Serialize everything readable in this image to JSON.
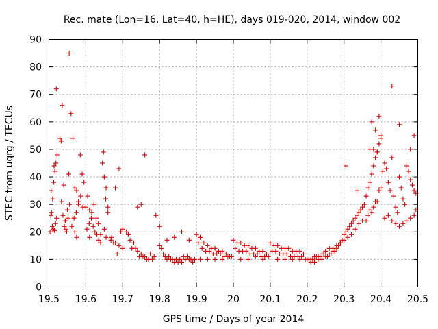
{
  "chart_data": {
    "type": "scatter",
    "title": "Rec. mate (Lon=16, Lat=40, h=HE), days 019-020, 2014, window 002",
    "xlabel": "GPS time / Days of year 2014",
    "ylabel": "STEC from uqrg / TECUs",
    "xlim": [
      19.5,
      20.5
    ],
    "ylim": [
      0,
      90
    ],
    "xticks": [
      "19.5",
      "19.6",
      "19.7",
      "19.8",
      "19.9",
      "20",
      "20.1",
      "20.2",
      "20.3",
      "20.4",
      "20.5"
    ],
    "yticks": [
      "0",
      "10",
      "20",
      "30",
      "40",
      "50",
      "60",
      "70",
      "80",
      "90"
    ],
    "grid": true,
    "marker": "plus",
    "color": "#d00000",
    "series": [
      {
        "x": [
          19.503,
          19.507,
          19.51,
          19.513,
          19.516,
          19.519,
          19.522,
          19.505,
          19.509,
          19.512,
          19.515,
          19.518,
          19.521,
          19.506,
          19.514,
          19.52,
          19.53,
          19.533,
          19.536,
          19.54,
          19.544,
          19.548,
          19.552,
          19.556,
          19.534,
          19.538,
          19.542,
          19.546,
          19.55,
          19.554,
          19.545,
          19.555,
          19.56,
          19.565,
          19.57,
          19.575,
          19.58,
          19.585,
          19.59,
          19.595,
          19.562,
          19.568,
          19.574,
          19.58,
          19.586,
          19.592,
          19.57,
          19.575,
          19.6,
          19.605,
          19.61,
          19.615,
          19.62,
          19.625,
          19.63,
          19.635,
          19.64,
          19.603,
          19.609,
          19.616,
          19.622,
          19.628,
          19.634,
          19.64,
          19.61,
          19.645,
          19.65,
          19.655,
          19.66,
          19.648,
          19.654,
          19.66,
          19.65,
          19.655,
          19.668,
          19.675,
          19.68,
          19.69,
          19.695,
          19.7,
          19.67,
          19.68,
          19.69,
          19.7,
          19.685,
          19.71,
          19.72,
          19.73,
          19.74,
          19.75,
          19.76,
          19.77,
          19.78,
          19.715,
          19.725,
          19.735,
          19.745,
          19.755,
          19.765,
          19.775,
          19.785,
          19.74,
          19.75,
          19.76,
          19.79,
          19.8,
          19.8,
          19.81,
          19.82,
          19.83,
          19.84,
          19.85,
          19.86,
          19.87,
          19.88,
          19.89,
          19.805,
          19.815,
          19.825,
          19.835,
          19.845,
          19.855,
          19.865,
          19.875,
          19.885,
          19.895,
          19.82,
          19.84,
          19.86,
          19.88,
          19.9,
          19.91,
          19.92,
          19.93,
          19.94,
          19.95,
          19.96,
          19.97,
          19.98,
          19.99,
          19.905,
          19.915,
          19.925,
          19.935,
          19.945,
          19.955,
          19.965,
          19.975,
          19.985,
          19.995,
          19.91,
          19.93,
          19.95,
          19.97,
          20.0,
          20.01,
          20.02,
          20.03,
          20.04,
          20.05,
          20.06,
          20.07,
          20.08,
          20.09,
          20.005,
          20.015,
          20.025,
          20.035,
          20.045,
          20.055,
          20.065,
          20.075,
          20.085,
          20.095,
          20.02,
          20.04,
          20.06,
          20.08,
          20.1,
          20.11,
          20.12,
          20.13,
          20.14,
          20.15,
          20.16,
          20.17,
          20.18,
          20.19,
          20.105,
          20.115,
          20.125,
          20.135,
          20.145,
          20.155,
          20.165,
          20.175,
          20.185,
          20.195,
          20.12,
          20.14,
          20.16,
          20.18,
          20.2,
          20.205,
          20.21,
          20.215,
          20.22,
          20.225,
          20.23,
          20.235,
          20.24,
          20.245,
          20.25,
          20.21,
          20.22,
          20.23,
          20.24,
          20.25,
          20.255,
          20.26,
          20.265,
          20.27,
          20.275,
          20.28,
          20.285,
          20.29,
          20.295,
          20.26,
          20.27,
          20.28,
          20.29,
          20.3,
          20.3,
          20.305,
          20.31,
          20.315,
          20.32,
          20.325,
          20.33,
          20.335,
          20.34,
          20.345,
          20.35,
          20.31,
          20.32,
          20.33,
          20.34,
          20.35,
          20.305,
          20.335,
          20.355,
          20.36,
          20.365,
          20.37,
          20.375,
          20.38,
          20.385,
          20.39,
          20.395,
          20.4,
          20.36,
          20.365,
          20.37,
          20.375,
          20.38,
          20.385,
          20.39,
          20.395,
          20.4,
          20.37,
          20.38,
          20.39,
          20.4,
          20.375,
          20.385,
          20.395,
          20.405,
          20.41,
          20.415,
          20.42,
          20.425,
          20.43,
          20.435,
          20.44,
          20.445,
          20.45,
          20.455,
          20.46,
          20.465,
          20.47,
          20.475,
          20.48,
          20.485,
          20.49,
          20.495,
          20.41,
          20.42,
          20.43,
          20.44,
          20.45,
          20.46,
          20.47,
          20.48,
          20.49,
          20.495,
          20.43,
          20.45,
          20.49,
          20.48
        ],
        "y": [
          20,
          27,
          32,
          38,
          42,
          45,
          48,
          26,
          22,
          21,
          20.5,
          23,
          25,
          35,
          44,
          72,
          54,
          53,
          66,
          37,
          24,
          20,
          25,
          30,
          31,
          26,
          22,
          21,
          28,
          41,
          24,
          85,
          63,
          54,
          36,
          35,
          31,
          48,
          41,
          38,
          22,
          25,
          27,
          30,
          33,
          29,
          20,
          18,
          29,
          33,
          28,
          25,
          22,
          20,
          19,
          17,
          16,
          21,
          23,
          27,
          30,
          25,
          23,
          19,
          18,
          45,
          40,
          36,
          29,
          49,
          32,
          27,
          21,
          18,
          17,
          16,
          36,
          43,
          20,
          21,
          18,
          16,
          15,
          14,
          12,
          20,
          17,
          16,
          13,
          12,
          11,
          10,
          10,
          19,
          14,
          14,
          11,
          11,
          10,
          12,
          11,
          29,
          30,
          48,
          26,
          22,
          15,
          12,
          10,
          10,
          9,
          9,
          9,
          10,
          10,
          9,
          14,
          11,
          11,
          10,
          10,
          10,
          11,
          11,
          10,
          10,
          17,
          18,
          20,
          17,
          19,
          18,
          16,
          15,
          14,
          14,
          13,
          13,
          12,
          11,
          16,
          14,
          13,
          13,
          12,
          12,
          12,
          11,
          11,
          11,
          10,
          10,
          10,
          10,
          17,
          16,
          16,
          15,
          15,
          14,
          14,
          13,
          13,
          12,
          14,
          13,
          13,
          13,
          12,
          12,
          12,
          11,
          11,
          11,
          10,
          10,
          11,
          10,
          16,
          15,
          15,
          14,
          14,
          14,
          13,
          13,
          13,
          12,
          13,
          13,
          12,
          12,
          12,
          11,
          11,
          11,
          11,
          10,
          10,
          10,
          10,
          10,
          10,
          10,
          10,
          10,
          11,
          11,
          11,
          11,
          12,
          12,
          13,
          9,
          9,
          10,
          10,
          11,
          11,
          12,
          12,
          13,
          13,
          14,
          15,
          16,
          17,
          14,
          14,
          15,
          16,
          17,
          19,
          20,
          21,
          22,
          23,
          24,
          25,
          26,
          27,
          28,
          29,
          18,
          19,
          21,
          23,
          24,
          44,
          35,
          30,
          33,
          36,
          38,
          41,
          44,
          47,
          49,
          52,
          55,
          24,
          26,
          28,
          27,
          29,
          31,
          31,
          35,
          36,
          50,
          50,
          49,
          54,
          60,
          57,
          62,
          42,
          45,
          43,
          38,
          35,
          47,
          33,
          29,
          27,
          40,
          36,
          32,
          30,
          44,
          42,
          39,
          37,
          35,
          34,
          25,
          26,
          24,
          23,
          22,
          23,
          24,
          25,
          26,
          28,
          73,
          59,
          55,
          50
        ],
        "name": ""
      }
    ]
  }
}
